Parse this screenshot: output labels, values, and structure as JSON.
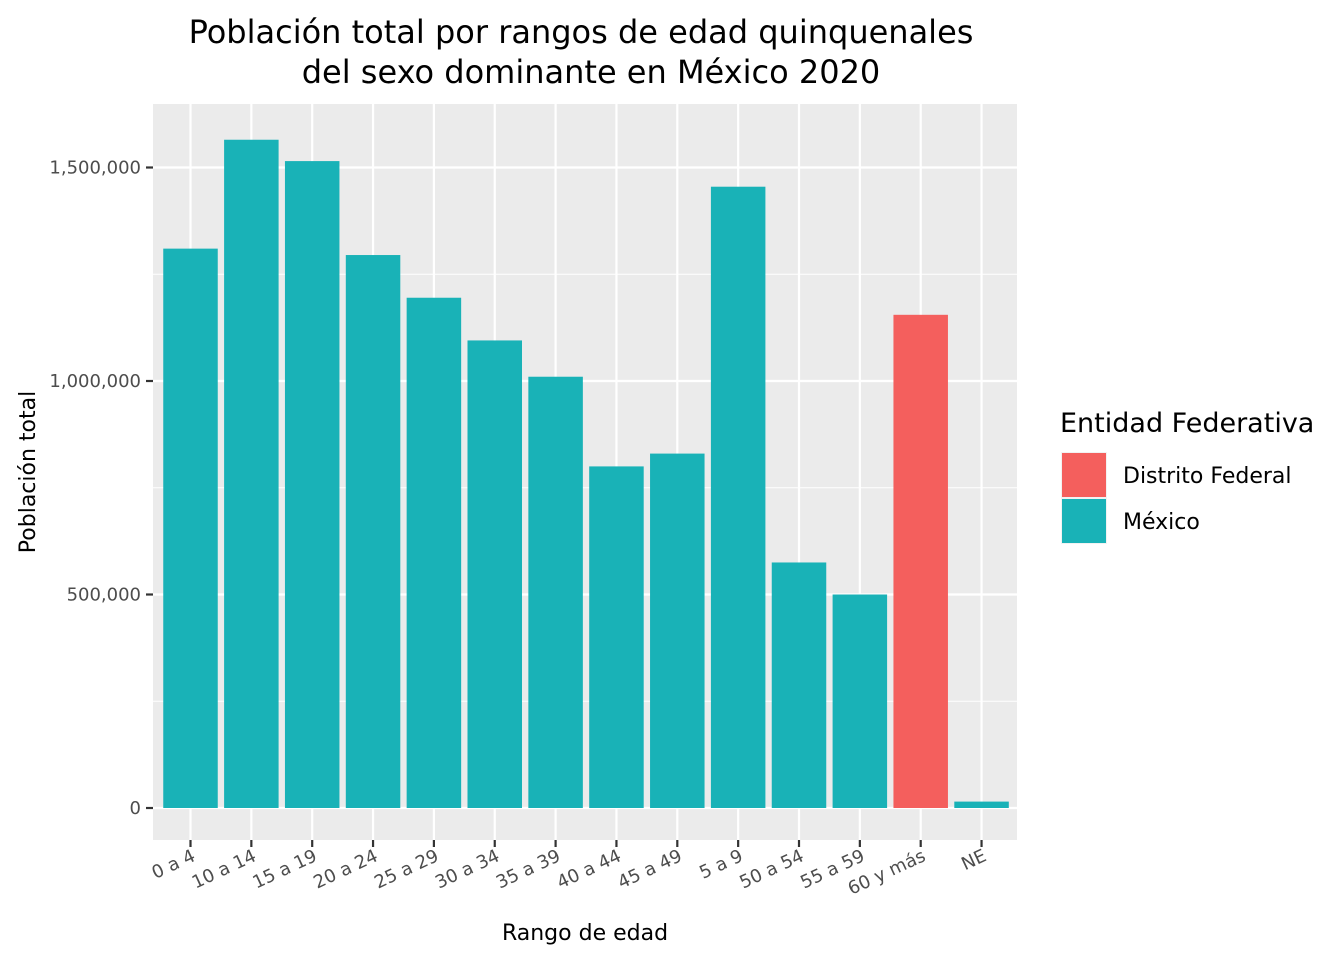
{
  "chart_data": {
    "type": "bar",
    "title": "Población total por rangos de edad quinquenales",
    "subtitle": "del sexo dominante en México 2020",
    "xlabel": "Rango de edad",
    "ylabel": "Población total",
    "categories": [
      "0 a 4",
      "10 a 14",
      "15 a 19",
      "20 a 24",
      "25 a 29",
      "30 a 34",
      "35 a 39",
      "40 a 44",
      "45 a 49",
      "5 a 9",
      "50 a 54",
      "55 a 59",
      "60 y más",
      "NE"
    ],
    "values": [
      1310000,
      1565000,
      1515000,
      1295000,
      1195000,
      1095000,
      1010000,
      800000,
      830000,
      1455000,
      575000,
      500000,
      1155000,
      15000
    ],
    "groups": [
      "México",
      "México",
      "México",
      "México",
      "México",
      "México",
      "México",
      "México",
      "México",
      "México",
      "México",
      "México",
      "Distrito Federal",
      "México"
    ],
    "ylim": [
      0,
      1600000
    ],
    "yticks": [
      0,
      500000,
      1000000,
      1500000
    ],
    "ytick_labels": [
      "0",
      "500,000",
      "1,000,000",
      "1,500,000"
    ],
    "grid": true,
    "legend": {
      "title": "Entidad Federativa",
      "placement": "right",
      "entries": [
        {
          "name": "Distrito Federal",
          "color": "#f8766d"
        },
        {
          "name": "México",
          "color": "#00bfc4"
        }
      ]
    },
    "colors": {
      "panel": "#ebebeb",
      "grid": "#ffffff",
      "México": "#19b2b7",
      "Distrito Federal": "#f45f5d"
    }
  }
}
